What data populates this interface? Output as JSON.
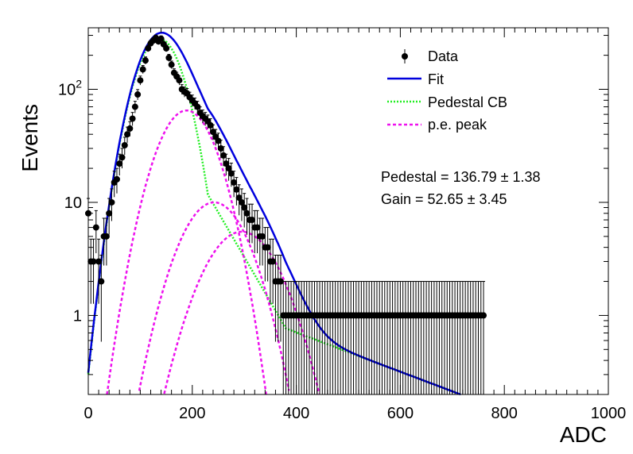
{
  "chart_data": {
    "type": "scatter",
    "title": "",
    "xlabel": "ADC",
    "ylabel": "Events",
    "xlim": [
      0,
      1000
    ],
    "ylim": [
      0.2,
      350
    ],
    "log_y": true,
    "grid": false,
    "legend_position": "top-right",
    "x_ticks": [
      {
        "value": 0,
        "label": "0"
      },
      {
        "value": 200,
        "label": "200"
      },
      {
        "value": 400,
        "label": "400"
      },
      {
        "value": 600,
        "label": "600"
      },
      {
        "value": 800,
        "label": "800"
      },
      {
        "value": 1000,
        "label": "1000"
      }
    ],
    "y_ticks": [
      {
        "value": 1,
        "label": "1"
      },
      {
        "value": 10,
        "label": "10"
      },
      {
        "value": 100,
        "label": "10^2"
      }
    ],
    "legend": [
      {
        "label": "Data",
        "style": "marker",
        "color": "#000000"
      },
      {
        "label": "Fit",
        "style": "solid",
        "color": "#0000dd"
      },
      {
        "label": "Pedestal CB",
        "style": "dotted",
        "color": "#22ee22"
      },
      {
        "label": "p.e. peak",
        "style": "dashed",
        "color": "#ee11ee"
      }
    ],
    "annotations": [
      "Pedestal = 136.79 ± 1.38",
      "Gain = 52.65 ± 3.45"
    ],
    "fit_params": {
      "pedestal_mu": 136.79,
      "pedestal_sigma": 37,
      "pedestal_amp": 280,
      "pe_peaks": [
        {
          "mu": 189,
          "sigma": 45,
          "amp": 65
        },
        {
          "mu": 242,
          "sigma": 52,
          "amp": 10
        },
        {
          "mu": 295,
          "sigma": 58,
          "amp": 5.5
        }
      ]
    },
    "series": [
      {
        "name": "Data",
        "type": "scatter",
        "color": "#000000",
        "x": [
          0,
          5,
          10,
          15,
          20,
          25,
          30,
          35,
          40,
          45,
          50,
          55,
          60,
          65,
          70,
          75,
          80,
          85,
          90,
          95,
          100,
          105,
          110,
          115,
          120,
          125,
          130,
          135,
          140,
          145,
          150,
          155,
          160,
          165,
          170,
          175,
          180,
          185,
          190,
          195,
          200,
          205,
          210,
          215,
          220,
          225,
          230,
          235,
          240,
          245,
          250,
          255,
          260,
          265,
          270,
          275,
          280,
          285,
          290,
          295,
          300,
          305,
          310,
          315,
          320,
          325,
          330,
          335,
          340,
          345,
          350,
          355,
          360,
          365,
          370,
          375,
          380,
          385,
          390,
          395,
          400,
          405,
          410,
          415,
          420,
          425,
          430,
          435,
          440,
          445,
          450,
          455,
          460,
          465,
          470,
          475,
          480,
          485,
          490,
          495,
          500,
          505,
          510,
          515,
          520,
          525,
          530,
          535,
          540,
          545,
          550,
          555,
          560,
          565,
          570,
          575,
          580,
          585,
          590,
          595,
          600,
          605,
          610,
          615,
          620,
          625,
          630,
          635,
          640,
          645,
          650,
          655,
          660,
          665,
          670,
          675,
          680,
          685,
          690,
          695,
          700,
          705,
          710,
          715,
          720,
          725,
          730,
          735,
          740,
          745,
          750,
          755,
          760
        ],
        "y": [
          8,
          3,
          3,
          6,
          3,
          2,
          5,
          5,
          8,
          10,
          15,
          16,
          22,
          25,
          32,
          40,
          45,
          55,
          70,
          90,
          120,
          150,
          180,
          230,
          255,
          270,
          285,
          265,
          280,
          250,
          230,
          190,
          165,
          140,
          130,
          120,
          100,
          95,
          92,
          85,
          80,
          75,
          70,
          62,
          58,
          55,
          52,
          48,
          42,
          38,
          35,
          30,
          26,
          22,
          20,
          18,
          15,
          13,
          11,
          10,
          9,
          8,
          7,
          7,
          6,
          6,
          5,
          5,
          4,
          4,
          3,
          3,
          2,
          2,
          2,
          1,
          1,
          1,
          1,
          1,
          1,
          1,
          1,
          1,
          1,
          1,
          1,
          1,
          1,
          1,
          1,
          1,
          1,
          1,
          1,
          1,
          1,
          1,
          1,
          1,
          1,
          1,
          1,
          1,
          1,
          1,
          1,
          1,
          1,
          1,
          1,
          1,
          1,
          1,
          1,
          1,
          1,
          1,
          1,
          1,
          1,
          1,
          1,
          1,
          1,
          1,
          1,
          1,
          1,
          1,
          1,
          1,
          1,
          1,
          1,
          1,
          1,
          1,
          1,
          1,
          1,
          1,
          1,
          1,
          1,
          1,
          1,
          1,
          1,
          1,
          1,
          1,
          1
        ]
      },
      {
        "name": "Fit",
        "type": "line",
        "color": "#0000dd"
      },
      {
        "name": "Pedestal CB",
        "type": "line",
        "color": "#22ee22"
      },
      {
        "name": "p.e. peak",
        "type": "line",
        "color": "#ee11ee"
      }
    ]
  }
}
